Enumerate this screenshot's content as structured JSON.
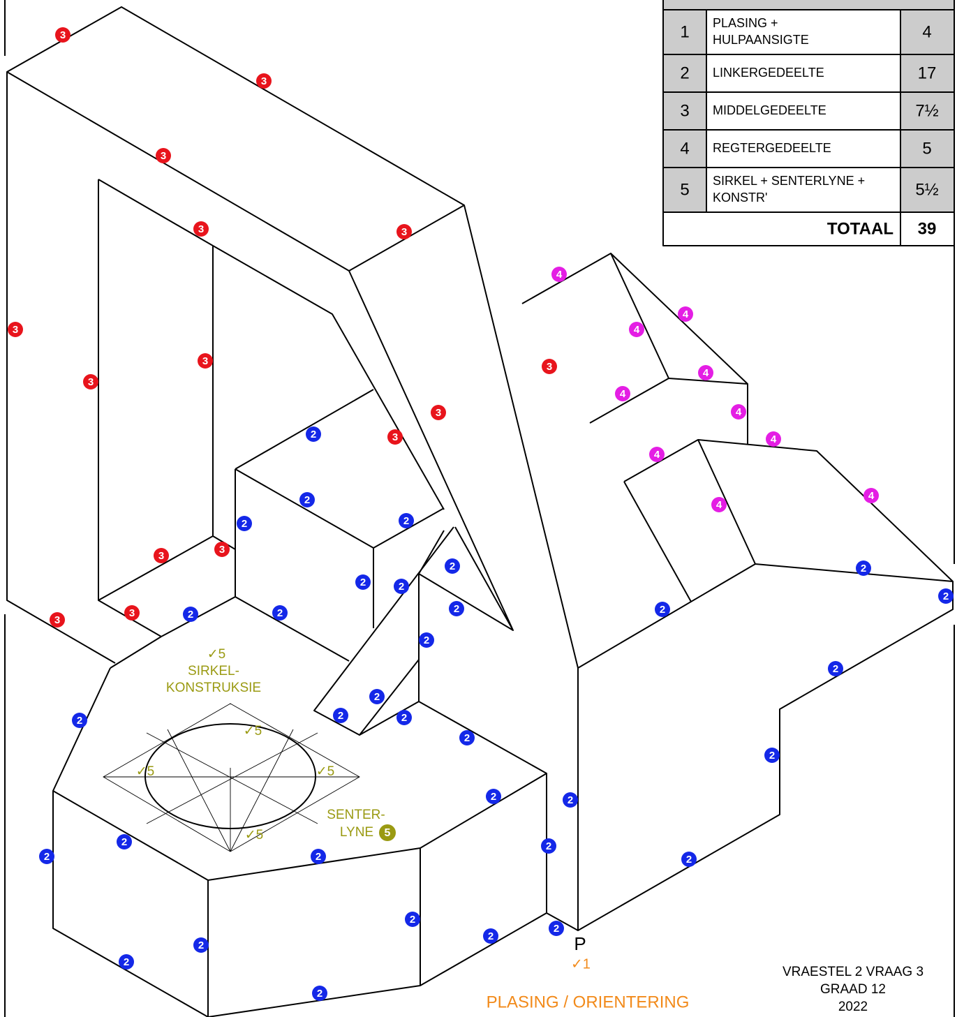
{
  "table": {
    "rows": [
      {
        "number": "1",
        "item": [
          "PLASING +",
          "HULPAANSIGTE"
        ],
        "marks": "4"
      },
      {
        "number": "2",
        "item": [
          "LINKERGEDEELTE"
        ],
        "marks": "17"
      },
      {
        "number": "3",
        "item": [
          "MIDDELGEDEELTE"
        ],
        "marks": "7½"
      },
      {
        "number": "4",
        "item": [
          "REGTERGEDEELTE"
        ],
        "marks": "5"
      },
      {
        "number": "5",
        "item": [
          "SIRKEL + SENTERLYNE +",
          "KONSTR'"
        ],
        "marks": "5½"
      }
    ],
    "total": {
      "label": "TOTAAL",
      "value": "39"
    }
  },
  "annotations": {
    "circle_construction": [
      "SIRKEL-",
      "KONSTRUKSIE"
    ],
    "center_lines": [
      "SENTER-",
      "LYNE"
    ],
    "center_lines_mark": "5",
    "checks": [
      "✓5",
      "✓5",
      "✓5",
      "✓5",
      "✓5"
    ],
    "point_label": "P",
    "point_check": "✓1",
    "placement": "PLASING / ORIENTERING"
  },
  "footer": [
    "VRAESTEL 2 VRAAG 3",
    "GRAAD 12",
    "2022"
  ],
  "marks": {
    "red": [
      "3",
      "3",
      "3",
      "3",
      "3",
      "3",
      "3",
      "3",
      "3",
      "3",
      "3",
      "3",
      "3",
      "3",
      "3"
    ],
    "magenta": [
      "4",
      "4",
      "4",
      "4",
      "4",
      "4",
      "4",
      "4",
      "4",
      "4"
    ],
    "blue": [
      "2",
      "2",
      "2",
      "2",
      "2",
      "2",
      "2",
      "2",
      "2",
      "2",
      "2",
      "2",
      "2",
      "2",
      "2",
      "2",
      "2",
      "2",
      "2",
      "2",
      "2",
      "2",
      "2",
      "2",
      "2",
      "2",
      "2",
      "2",
      "2",
      "2",
      "2",
      "2",
      "2",
      "2"
    ]
  }
}
